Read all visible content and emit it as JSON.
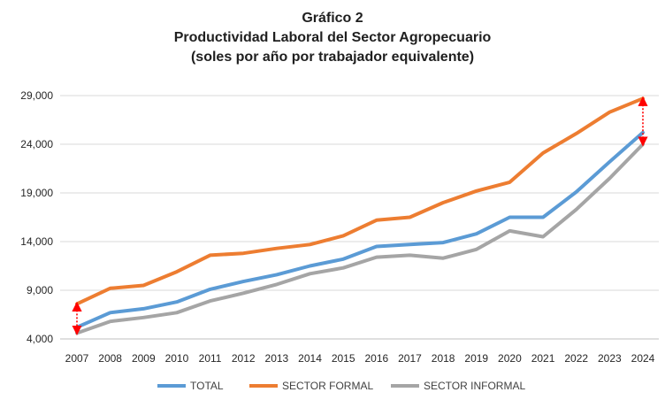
{
  "chart_data": {
    "type": "line",
    "title": "Gráfico 2",
    "subtitle": "Productividad Laboral del Sector Agropecuario",
    "subtitle2": "(soles por año por trabajador equivalente)",
    "categories": [
      "2007",
      "2008",
      "2009",
      "2010",
      "2011",
      "2012",
      "2013",
      "2014",
      "2015",
      "2016",
      "2017",
      "2018",
      "2019",
      "2020",
      "2021",
      "2022",
      "2023",
      "2024"
    ],
    "series": [
      {
        "name": "TOTAL",
        "color": "#5b9bd5",
        "values": [
          5200,
          6700,
          7100,
          7800,
          9100,
          9900,
          10600,
          11500,
          12200,
          13500,
          13700,
          13900,
          14800,
          16500,
          16500,
          19100,
          22200,
          25200
        ]
      },
      {
        "name": "SECTOR FORMAL",
        "color": "#ed7d31",
        "values": [
          7600,
          9200,
          9500,
          10900,
          12600,
          12800,
          13300,
          13700,
          14600,
          16200,
          16500,
          18000,
          19200,
          20100,
          23100,
          25100,
          27300,
          28700
        ]
      },
      {
        "name": "SECTOR INFORMAL",
        "color": "#a5a5a5",
        "values": [
          4600,
          5800,
          6200,
          6700,
          7900,
          8700,
          9600,
          10700,
          11300,
          12400,
          12600,
          12300,
          13200,
          15100,
          14500,
          17300,
          20500,
          24000
        ]
      }
    ],
    "yticks": [
      "4,000",
      "9,000",
      "14,000",
      "19,000",
      "24,000",
      "29,000"
    ],
    "ytick_values": [
      4000,
      9000,
      14000,
      19000,
      24000,
      29000
    ],
    "ylim": [
      4000,
      29000
    ],
    "grid": true,
    "legend": "bottom",
    "gap_markers": {
      "color": "#ff0000",
      "style": "dotted double arrow",
      "at": [
        "2007",
        "2024"
      ]
    }
  }
}
